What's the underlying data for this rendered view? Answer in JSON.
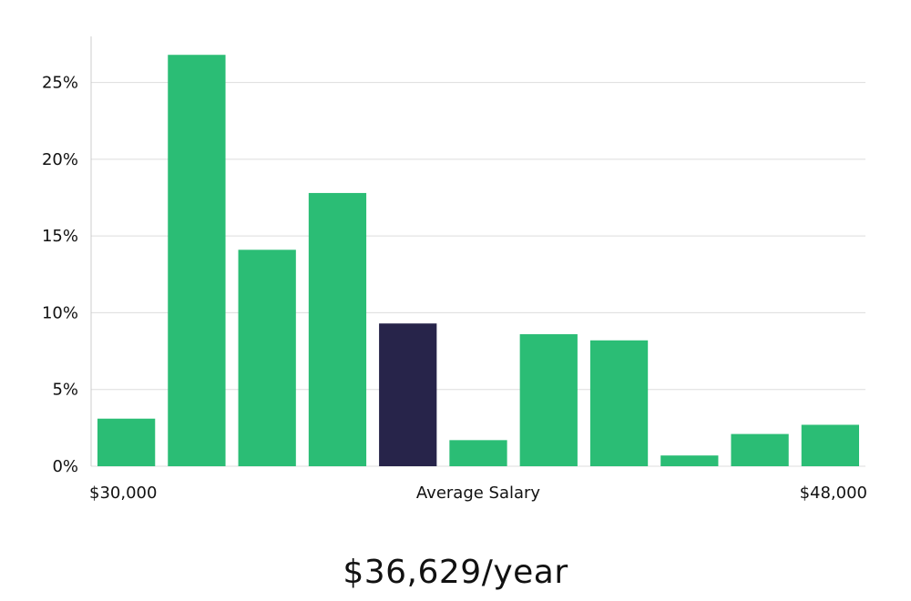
{
  "chart_data": {
    "type": "bar",
    "x_range_labels": [
      "$30,000",
      "$48,000"
    ],
    "xlabel": "Average Salary",
    "ylabel": "",
    "ylim": [
      0,
      28
    ],
    "y_ticks": [
      0,
      5,
      10,
      15,
      20,
      25
    ],
    "y_tick_labels": [
      "0%",
      "5%",
      "10%",
      "15%",
      "20%",
      "25%"
    ],
    "grid": "horizontal",
    "values": [
      3.1,
      26.8,
      14.1,
      17.8,
      9.3,
      1.7,
      8.6,
      8.2,
      0.7,
      2.1,
      2.7
    ],
    "highlight_index": 4,
    "colors": {
      "bar": "#2bbd75",
      "highlight": "#27244a",
      "grid": "#dddddd",
      "axis": "#cccccc"
    }
  },
  "summary": {
    "salary_text": "$36,629/year"
  }
}
